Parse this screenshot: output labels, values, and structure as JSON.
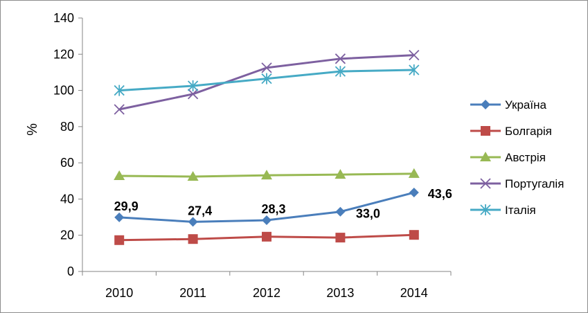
{
  "chart_data": {
    "type": "line",
    "ylabel": "%",
    "xlabel": "",
    "categories": [
      "2010",
      "2011",
      "2012",
      "2013",
      "2014"
    ],
    "ylim": [
      0,
      140
    ],
    "yticks": [
      "0",
      "20",
      "40",
      "60",
      "80",
      "100",
      "120",
      "140"
    ],
    "grid": false,
    "legend_position": "right",
    "series": [
      {
        "name": "Україна",
        "values": [
          29.9,
          27.4,
          28.3,
          33.0,
          43.6
        ],
        "color": "#4a7ebb",
        "marker": "diamond",
        "data_labels": [
          "29,9",
          "27,4",
          "28,3",
          "33,0",
          "43,6"
        ]
      },
      {
        "name": "Болгарія",
        "values": [
          17.3,
          17.9,
          19.2,
          18.7,
          20.2
        ],
        "color": "#be4b48",
        "marker": "square"
      },
      {
        "name": "Австрія",
        "values": [
          52.8,
          52.4,
          53.1,
          53.5,
          54.0
        ],
        "color": "#98b954",
        "marker": "triangle"
      },
      {
        "name": "Португалія",
        "values": [
          89.5,
          98.0,
          112.5,
          117.5,
          119.5
        ],
        "color": "#7d60a0",
        "marker": "x"
      },
      {
        "name": "Італія",
        "values": [
          100.0,
          102.5,
          106.5,
          110.5,
          111.3
        ],
        "color": "#46aac5",
        "marker": "star"
      }
    ]
  }
}
